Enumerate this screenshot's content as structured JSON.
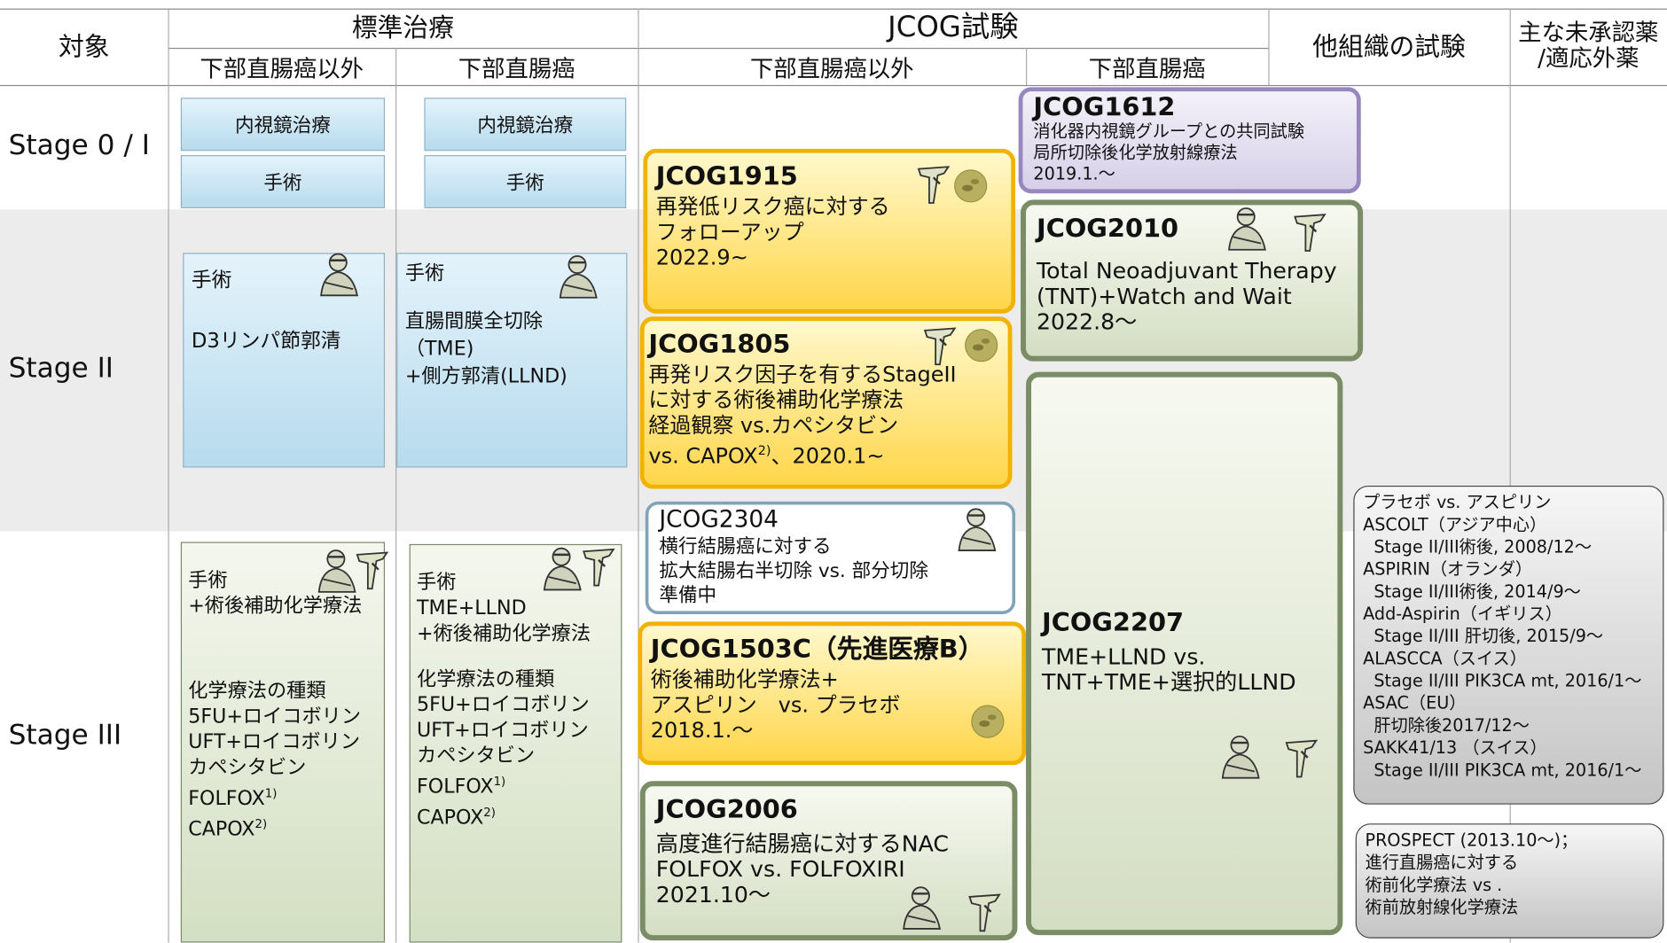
{
  "header": {
    "target": "対象",
    "standard": "標準治療",
    "jcog": "JCOG試験",
    "other": "他組織の試験",
    "drugs": [
      "主な未承認薬",
      "/適応外薬"
    ],
    "sub": [
      "下部直腸癌以外",
      "下部直腸癌",
      "下部直腸癌以外",
      "下部直腸癌"
    ]
  },
  "stages": [
    "Stage 0 / I",
    "Stage II",
    "Stage III"
  ],
  "standard": {
    "stage0": [
      [
        "内視鏡治療",
        "手術"
      ],
      [
        "内視鏡治療",
        "手術"
      ]
    ],
    "stage2": [
      [
        "手術",
        "",
        "D3リンパ節郭清"
      ],
      [
        "手術",
        "",
        "直腸間膜全切除",
        "（TME)",
        "+側方郭清(LLND)"
      ]
    ],
    "stage3": [
      [
        "手術",
        "+術後補助化学療法",
        "",
        "",
        "",
        "化学療法の種類",
        "5FU+ロイコボリン",
        "UFT+ロイコボリン",
        "カペシタビン",
        {
          "text": "FOLFOX",
          "sup": "1)"
        },
        {
          "text": "CAPOX",
          "sup": "2)"
        }
      ],
      [
        "手術",
        "TME+LLND",
        "+術後補助化学療法",
        "",
        "化学療法の種類",
        "5FU+ロイコボリン",
        "UFT+ロイコボリン",
        "カペシタビン",
        {
          "text": "FOLFOX",
          "sup": "1)"
        },
        {
          "text": "CAPOX",
          "sup": "2)"
        }
      ]
    ]
  },
  "trials": [
    {
      "title": "JCOG1915",
      "lines": [
        "再発低リスク癌に対する",
        "フォローアップ",
        "2022.9~"
      ]
    },
    {
      "title": "JCOG1805",
      "lines": [
        "再発リスク因子を有するStageII",
        "に対する術後補助化学療法",
        "経過観察 vs.カペシタビン",
        {
          "text": "vs. CAPOX",
          "sup": "2)",
          "after": "、2020.1~"
        }
      ]
    },
    {
      "title": "JCOG2304",
      "lines": [
        "横行結腸癌に対する",
        "拡大結腸右半切除 vs. 部分切除",
        "準備中"
      ]
    },
    {
      "title": "JCOG1503C（先進医療B）",
      "lines": [
        "術後補助化学療法+",
        "アスピリン　vs. プラセボ",
        "2018.1.～"
      ]
    },
    {
      "title": "JCOG2006",
      "lines": [
        "高度進行結腸癌に対するNAC",
        "FOLFOX vs. FOLFOXIRI",
        "2021.10～"
      ]
    },
    {
      "title": "JCOG1612",
      "lines": [
        "消化器内視鏡グループとの共同試験",
        "局所切除後化学放射線療法",
        "2019.1.～"
      ]
    },
    {
      "title": "JCOG2010",
      "lines": [
        "Total Neoadjuvant Therapy",
        "(TNT)+Watch and Wait",
        "2022.8～"
      ]
    },
    {
      "title": "JCOG2207",
      "lines": [
        "TME+LLND vs.",
        "TNT+TME+選択的LLND"
      ]
    }
  ],
  "other_trials": [
    [
      "プラセボ vs. アスピリン",
      "ASCOLT（アジア中心）",
      "  Stage II/III術後, 2008/12～",
      "ASPIRIN（オランダ）",
      "  Stage II/III術後, 2014/9～",
      "Add-Aspirin（イギリス）",
      "  Stage II/III 肝切後, 2015/9～",
      "ALASCCA（スイス）",
      "  Stage II/III PIK3CA mt, 2016/1～",
      "ASAC（EU）",
      "  肝切除後2017/12～",
      "SAKK41/13 （スイス）",
      "  Stage II/III PIK3CA mt, 2016/1～"
    ],
    [
      "PROSPECT (2013.10～)；",
      "進行直腸癌に対する",
      "術前化学療法 vs .",
      "術前放射線化学療法"
    ]
  ]
}
